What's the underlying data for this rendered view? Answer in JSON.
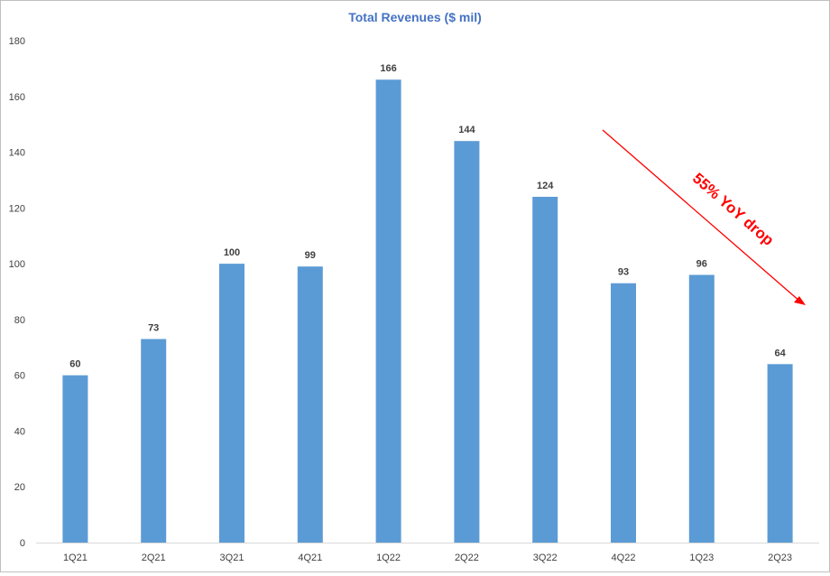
{
  "chart_data": {
    "type": "bar",
    "title": "Total Revenues ($ mil)",
    "categories": [
      "1Q21",
      "2Q21",
      "3Q21",
      "4Q21",
      "1Q22",
      "2Q22",
      "3Q22",
      "4Q22",
      "1Q23",
      "2Q23"
    ],
    "values": [
      60,
      73,
      100,
      99,
      166,
      144,
      124,
      93,
      96,
      64
    ],
    "ylim": [
      0,
      180
    ],
    "yticks": [
      0,
      20,
      40,
      60,
      80,
      100,
      120,
      140,
      160,
      180
    ],
    "grid": false,
    "legend": "none",
    "annotation": {
      "text": "55% YoY drop",
      "color": "#ff0000"
    },
    "colors": {
      "bar": "#5b9bd5",
      "title": "#4472c4",
      "axis": "#d9d9d9"
    }
  }
}
